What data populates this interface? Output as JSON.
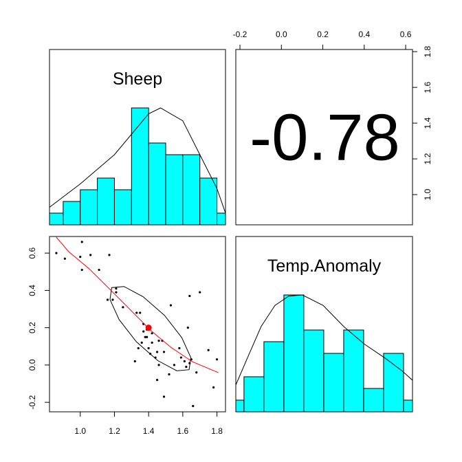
{
  "chart_data": [
    {
      "type": "histogram",
      "title": "Sheep",
      "color": "#00ffff",
      "xlim": [
        0.82,
        1.85
      ],
      "bins": [
        0.8,
        0.9,
        1.0,
        1.1,
        1.2,
        1.3,
        1.4,
        1.5,
        1.6,
        1.7,
        1.8,
        1.9
      ],
      "counts": [
        1,
        2,
        3,
        4,
        3,
        10,
        7,
        6,
        6,
        4,
        1
      ],
      "density": {
        "x": [
          0.82,
          1.0,
          1.2,
          1.4,
          1.47,
          1.6,
          1.7,
          1.8,
          1.85
        ],
        "y": [
          1.5,
          3.5,
          6.0,
          9.5,
          10.0,
          8.9,
          6.0,
          3.1,
          1.0
        ]
      }
    },
    {
      "type": "correlation",
      "value": -0.78,
      "xlim": [
        -0.22,
        0.633
      ],
      "xticks": [
        -0.2,
        {
          "value": 0,
          "label": "0.0"
        },
        0.2,
        0.4,
        0.6
      ],
      "ylim": [
        0.831,
        1.812
      ],
      "yticks": [
        {
          "value": 1,
          "label": "1.0"
        },
        1.2,
        1.4,
        1.6,
        1.8
      ]
    },
    {
      "type": "scatter",
      "color": "#000000",
      "xlim": [
        0.82,
        1.85
      ],
      "xticks": [
        {
          "value": 1,
          "label": "1.0"
        },
        1.2,
        1.4,
        1.6,
        1.8
      ],
      "ylim": [
        -0.251,
        0.689
      ],
      "yticks": [
        -0.2,
        {
          "value": 0,
          "label": "0.0"
        },
        0.2,
        0.4,
        0.6
      ],
      "x": [
        0.86,
        0.91,
        1.01,
        1.0,
        1.06,
        1.11,
        1.01,
        1.17,
        1.16,
        1.19,
        1.21,
        1.21,
        1.25,
        1.33,
        1.35,
        1.37,
        1.37,
        1.39,
        1.32,
        1.34,
        1.36,
        1.38,
        1.39,
        1.42,
        1.46,
        1.48,
        1.42,
        1.4,
        1.41,
        1.44,
        1.45,
        1.46,
        1.49,
        1.53,
        1.55,
        1.52,
        1.58,
        1.59,
        1.61,
        1.62,
        1.64,
        1.64,
        1.7,
        1.65,
        1.68,
        1.45,
        1.49,
        1.66,
        1.75,
        1.78,
        1.8,
        1.63
      ],
      "y": [
        0.6,
        0.57,
        0.66,
        0.58,
        0.59,
        0.51,
        0.51,
        0.59,
        0.35,
        0.35,
        0.41,
        0.39,
        0.31,
        0.28,
        0.28,
        0.22,
        0.18,
        0.19,
        0.02,
        0.09,
        0.12,
        0.15,
        0.15,
        0.17,
        0.13,
        0.13,
        0.12,
        0.09,
        0.06,
        0.04,
        0.07,
        0.0,
        0.07,
        0.32,
        0.0,
        -0.05,
        0.09,
        0.04,
        0.02,
        -0.01,
        0.37,
        0.01,
        0.39,
        0.03,
        -0.04,
        -0.08,
        -0.17,
        -0.22,
        0.08,
        -0.12,
        0.03,
        0.2
      ],
      "center": {
        "x": 1.4,
        "y": 0.2,
        "color": "#ff0000"
      },
      "smooth": {
        "color": "#ff0000",
        "x": [
          0.859,
          0.932,
          1.052,
          1.173,
          1.294,
          1.414,
          1.535,
          1.656,
          1.809
        ],
        "y": [
          0.686,
          0.608,
          0.516,
          0.406,
          0.295,
          0.184,
          0.092,
          0.018,
          -0.041
        ]
      },
      "ellipse": {
        "x": [
          1.637,
          1.647,
          1.594,
          1.493,
          1.368,
          1.256,
          1.184,
          1.174,
          1.227,
          1.328,
          1.453,
          1.565
        ],
        "y": [
          -0.025,
          0.04,
          0.147,
          0.266,
          0.366,
          0.421,
          0.415,
          0.351,
          0.244,
          0.125,
          0.024,
          -0.031
        ]
      }
    },
    {
      "type": "histogram",
      "title": "Temp.Anomaly",
      "color": "#00ffff",
      "xlim": [
        -0.241,
        0.645
      ],
      "bins": [
        -0.3,
        -0.2,
        -0.1,
        0,
        0.1,
        0.2,
        0.3,
        0.4,
        0.5,
        0.6,
        0.7
      ],
      "counts": [
        1,
        3,
        6,
        10,
        7,
        5,
        7,
        2,
        5,
        1
      ],
      "density": {
        "x": [
          -0.241,
          -0.183,
          -0.114,
          -0.045,
          0.024,
          0.093,
          0.197,
          0.3,
          0.403,
          0.507,
          0.593,
          0.645
        ],
        "y": [
          2.3,
          4.6,
          7.3,
          9.1,
          9.9,
          10.0,
          9.1,
          7.3,
          5.8,
          4.6,
          3.5,
          2.7
        ]
      }
    }
  ]
}
